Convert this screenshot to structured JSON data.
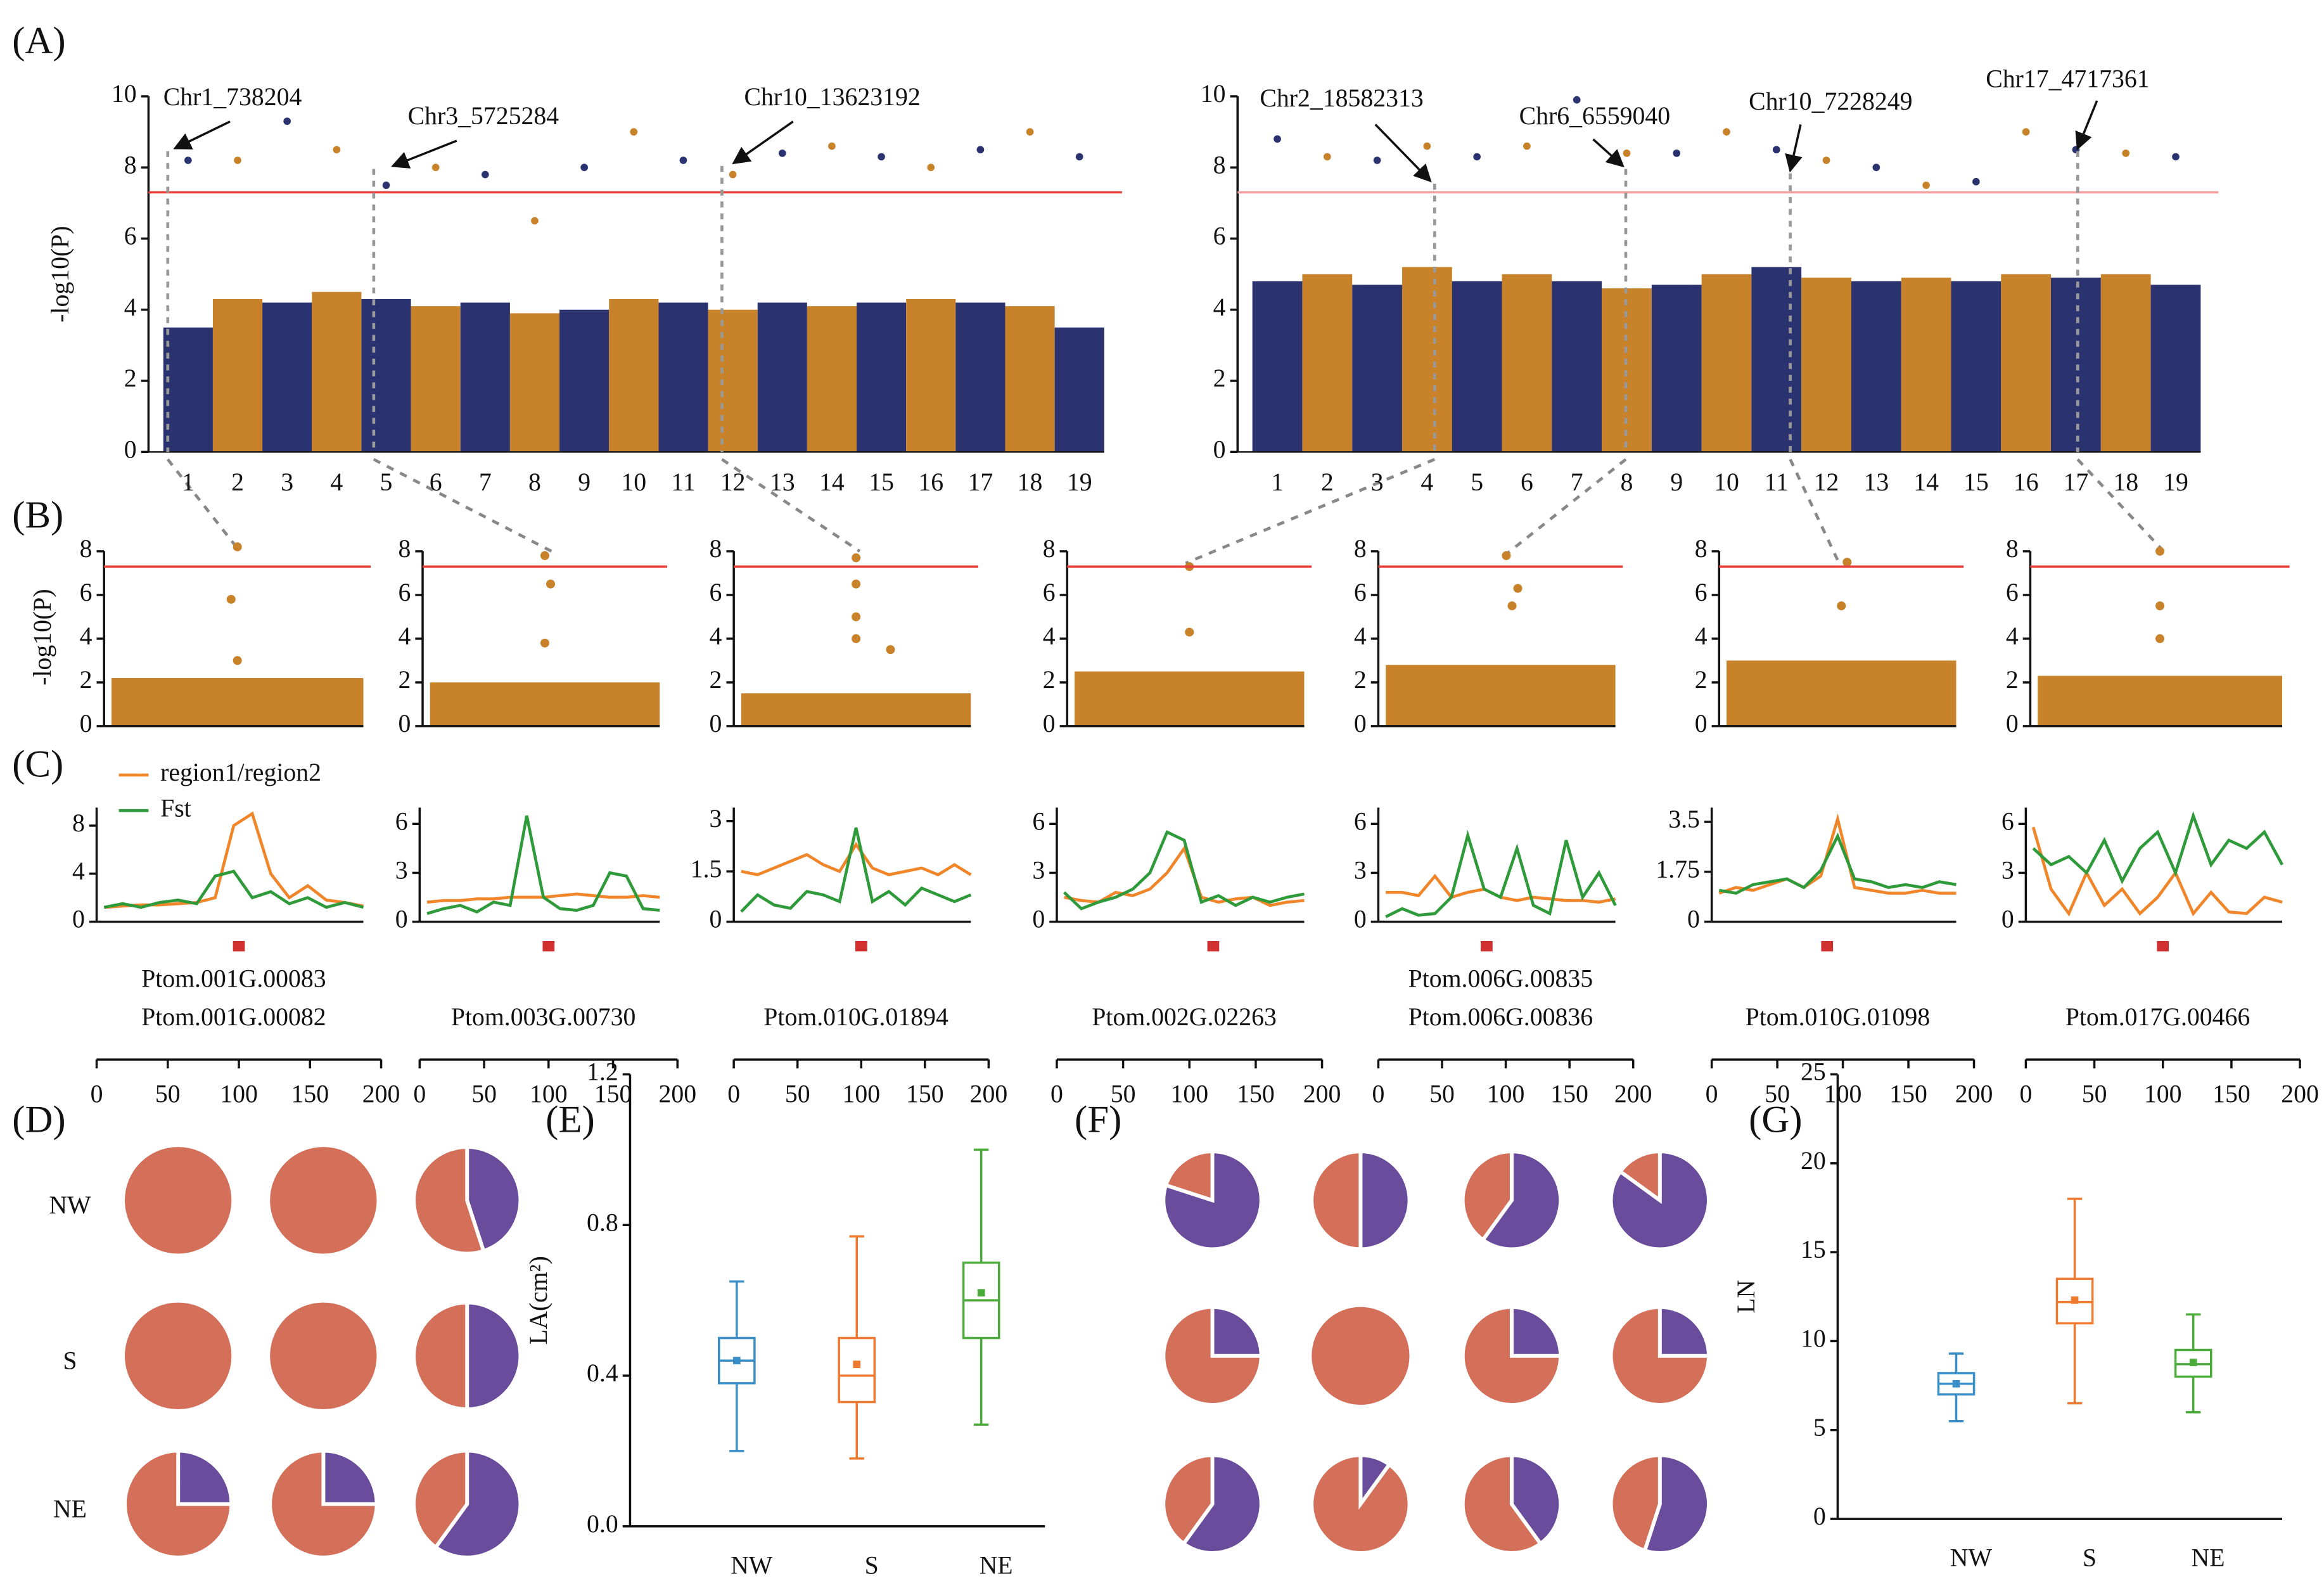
{
  "chart_data": [
    {
      "type": "manhattan",
      "panel": "(A)",
      "ylabel": "-log10(P)",
      "ylim": [
        0,
        10
      ],
      "yticks": [
        0,
        2,
        4,
        6,
        8,
        10
      ],
      "categories": [
        "1",
        "2",
        "3",
        "4",
        "5",
        "6",
        "7",
        "8",
        "9",
        "10",
        "11",
        "12",
        "13",
        "14",
        "15",
        "16",
        "17",
        "18",
        "19"
      ],
      "colors": [
        "#2b3270",
        "#c8822a"
      ],
      "threshold": 7.3,
      "threshold_color": "#e8403a",
      "band": [
        3.5,
        4.3,
        4.2,
        4.5,
        4.3,
        4.1,
        4.2,
        3.9,
        4.0,
        4.3,
        4.2,
        4.0,
        4.2,
        4.1,
        4.2,
        4.3,
        4.2,
        4.1,
        3.5
      ],
      "peaks": [
        8.2,
        8.2,
        9.3,
        8.5,
        7.5,
        8.0,
        7.8,
        6.5,
        8.0,
        9.0,
        8.2,
        7.8,
        8.4,
        8.6,
        8.3,
        8.0,
        8.5,
        9.0,
        8.3
      ],
      "annotations": [
        "Chr1_738204",
        "Chr3_5725284",
        "Chr10_13623192"
      ]
    },
    {
      "type": "manhattan",
      "ylim": [
        0,
        10
      ],
      "yticks": [
        0,
        2,
        4,
        6,
        8,
        10
      ],
      "categories": [
        "1",
        "2",
        "3",
        "4",
        "5",
        "6",
        "7",
        "8",
        "9",
        "10",
        "11",
        "12",
        "13",
        "14",
        "15",
        "16",
        "17",
        "18",
        "19"
      ],
      "colors": [
        "#2b3270",
        "#c8822a"
      ],
      "threshold": 7.3,
      "threshold_color": "#f4a0a0",
      "band": [
        4.8,
        5.0,
        4.7,
        5.2,
        4.8,
        5.0,
        4.8,
        4.6,
        4.7,
        5.0,
        5.2,
        4.9,
        4.8,
        4.9,
        4.8,
        5.0,
        4.9,
        5.0,
        4.7
      ],
      "peaks": [
        8.8,
        8.3,
        8.2,
        8.6,
        8.3,
        8.6,
        9.9,
        8.4,
        8.4,
        9.0,
        8.5,
        8.2,
        8.0,
        7.5,
        7.6,
        9.0,
        8.5,
        8.4,
        8.3
      ],
      "annotations": [
        "Chr2_18582313",
        "Chr6_6559040",
        "Chr10_7228249",
        "Chr17_4717361"
      ]
    },
    {
      "type": "regional",
      "panel": "(B)",
      "ylabel": "-log10(P)",
      "ylim": [
        0,
        8
      ],
      "yticks": [
        0,
        2,
        4,
        6,
        8
      ],
      "xlim": [
        0,
        200
      ],
      "threshold": 7.3,
      "color": "#c8822a",
      "band": 2.2,
      "x": [
        100,
        95,
        100
      ],
      "values": [
        8.2,
        5.8,
        3.0
      ]
    },
    {
      "type": "regional",
      "ylim": [
        0,
        8
      ],
      "yticks": [
        0,
        2,
        4,
        6,
        8
      ],
      "xlim": [
        0,
        200
      ],
      "threshold": 7.3,
      "color": "#c8822a",
      "band": 2.0,
      "x": [
        100,
        105,
        100
      ],
      "values": [
        7.8,
        6.5,
        3.8
      ]
    },
    {
      "type": "regional",
      "ylim": [
        0,
        8
      ],
      "yticks": [
        0,
        2,
        4,
        6,
        8
      ],
      "xlim": [
        0,
        200
      ],
      "threshold": 7.3,
      "color": "#c8822a",
      "band": 1.5,
      "x": [
        100,
        100,
        100,
        100,
        130
      ],
      "values": [
        7.7,
        6.5,
        5.0,
        4.0,
        3.5
      ]
    },
    {
      "type": "regional",
      "ylim": [
        0,
        8
      ],
      "yticks": [
        0,
        2,
        4,
        6,
        8
      ],
      "xlim": [
        0,
        200
      ],
      "threshold": 7.3,
      "color": "#c8822a",
      "band": 2.5,
      "x": [
        100,
        100
      ],
      "values": [
        7.3,
        4.3
      ]
    },
    {
      "type": "regional",
      "ylim": [
        0,
        8
      ],
      "yticks": [
        0,
        2,
        4,
        6,
        8
      ],
      "xlim": [
        0,
        200
      ],
      "threshold": 7.3,
      "color": "#c8822a",
      "band": 2.8,
      "x": [
        105,
        115,
        110
      ],
      "values": [
        7.8,
        6.3,
        5.5
      ]
    },
    {
      "type": "regional",
      "ylim": [
        0,
        8
      ],
      "yticks": [
        0,
        2,
        4,
        6,
        8
      ],
      "xlim": [
        0,
        200
      ],
      "threshold": 7.3,
      "color": "#c8822a",
      "band": 3.0,
      "x": [
        105,
        100
      ],
      "values": [
        7.5,
        5.5
      ]
    },
    {
      "type": "regional",
      "ylim": [
        0,
        8
      ],
      "yticks": [
        0,
        2,
        4,
        6,
        8
      ],
      "xlim": [
        0,
        200
      ],
      "threshold": 7.3,
      "color": "#c8822a",
      "band": 2.3,
      "x": [
        100,
        100,
        100
      ],
      "values": [
        8.0,
        5.5,
        4.0
      ]
    },
    {
      "type": "line",
      "panel": "(C)",
      "legend": "top-left",
      "ylim": [
        0,
        9.5
      ],
      "yticks": [
        0,
        4,
        8
      ],
      "xlim": [
        0,
        200
      ],
      "xticks": [
        0,
        50,
        100,
        150,
        200
      ],
      "gene_positions": [
        100
      ],
      "genes": [
        "Ptom.001G.00083",
        "Ptom.001G.00082"
      ],
      "series": [
        {
          "name": "region1/region2",
          "color": "#f0852a",
          "values": [
            1.2,
            1.3,
            1.4,
            1.4,
            1.5,
            1.6,
            2,
            8,
            9,
            4,
            2,
            3,
            1.8,
            1.6,
            1.3
          ]
        },
        {
          "name": "Fst",
          "color": "#2e9a3a",
          "values": [
            1.2,
            1.5,
            1.2,
            1.6,
            1.8,
            1.5,
            3.8,
            4.2,
            2,
            2.5,
            1.5,
            2,
            1.2,
            1.6,
            1.2
          ]
        }
      ]
    },
    {
      "type": "line",
      "ylim": [
        0,
        7
      ],
      "yticks": [
        0,
        3,
        6
      ],
      "xlim": [
        0,
        200
      ],
      "xticks": [
        0,
        50,
        100,
        150,
        200
      ],
      "gene_positions": [
        100
      ],
      "genes": [
        "Ptom.003G.00730"
      ],
      "series": [
        {
          "color": "#f0852a",
          "values": [
            1.2,
            1.3,
            1.3,
            1.4,
            1.4,
            1.5,
            1.5,
            1.5,
            1.6,
            1.7,
            1.6,
            1.5,
            1.5,
            1.6,
            1.5
          ]
        },
        {
          "color": "#2e9a3a",
          "values": [
            0.5,
            0.8,
            1,
            0.6,
            1.2,
            1,
            6.5,
            1.5,
            0.8,
            0.7,
            1,
            3,
            2.8,
            0.8,
            0.7
          ]
        }
      ]
    },
    {
      "type": "line",
      "ylim": [
        0,
        3.4
      ],
      "yticks": [
        0,
        1.5,
        3
      ],
      "xlim": [
        0,
        200
      ],
      "xticks": [
        0,
        50,
        100,
        150,
        200
      ],
      "gene_positions": [
        100
      ],
      "genes": [
        "Ptom.010G.01894"
      ],
      "series": [
        {
          "color": "#f0852a",
          "values": [
            1.5,
            1.4,
            1.6,
            1.8,
            2,
            1.7,
            1.5,
            2.3,
            1.6,
            1.4,
            1.5,
            1.6,
            1.4,
            1.7,
            1.4
          ]
        },
        {
          "color": "#2e9a3a",
          "values": [
            0.3,
            0.8,
            0.5,
            0.4,
            0.9,
            0.8,
            0.6,
            2.8,
            0.6,
            0.9,
            0.5,
            1,
            0.8,
            0.6,
            0.8
          ]
        }
      ]
    },
    {
      "type": "line",
      "ylim": [
        0,
        7
      ],
      "yticks": [
        0,
        3,
        6
      ],
      "xlim": [
        0,
        200
      ],
      "xticks": [
        0,
        50,
        100,
        150,
        200
      ],
      "gene_positions": [
        118
      ],
      "genes": [
        "Ptom.002G.02263"
      ],
      "series": [
        {
          "color": "#f0852a",
          "values": [
            1.5,
            1.3,
            1.2,
            1.8,
            1.6,
            2,
            3,
            4.5,
            1.5,
            1.2,
            1.4,
            1.5,
            1,
            1.2,
            1.3
          ]
        },
        {
          "color": "#2e9a3a",
          "values": [
            1.8,
            0.8,
            1.2,
            1.5,
            2,
            3,
            5.5,
            5,
            1.2,
            1.6,
            1,
            1.5,
            1.2,
            1.5,
            1.7
          ]
        }
      ]
    },
    {
      "type": "line",
      "ylim": [
        0,
        7
      ],
      "yticks": [
        0,
        3,
        6
      ],
      "xlim": [
        0,
        200
      ],
      "xticks": [
        0,
        50,
        100,
        150,
        200
      ],
      "gene_positions": [
        85
      ],
      "genes": [
        "Ptom.006G.00835",
        "Ptom.006G.00836"
      ],
      "series": [
        {
          "color": "#f0852a",
          "values": [
            1.8,
            1.8,
            1.6,
            2.8,
            1.5,
            1.8,
            2,
            1.5,
            1.3,
            1.5,
            1.4,
            1.3,
            1.3,
            1.2,
            1.4
          ]
        },
        {
          "color": "#2e9a3a",
          "values": [
            0.3,
            0.8,
            0.4,
            0.5,
            1.5,
            5.3,
            2,
            1.5,
            4.5,
            1,
            0.5,
            5,
            1.5,
            3,
            1
          ]
        }
      ]
    },
    {
      "type": "line",
      "ylim": [
        0,
        4
      ],
      "yticks": [
        0,
        1.75,
        3.5
      ],
      "xlim": [
        0,
        200
      ],
      "xticks": [
        0,
        50,
        100,
        150,
        200
      ],
      "gene_positions": [
        88
      ],
      "genes": [
        "Ptom.010G.01098"
      ],
      "series": [
        {
          "color": "#f0852a",
          "values": [
            1,
            1.2,
            1.1,
            1.3,
            1.5,
            1.2,
            1.6,
            3.6,
            1.2,
            1.1,
            1,
            1,
            1.1,
            1,
            1
          ]
        },
        {
          "color": "#2e9a3a",
          "values": [
            1.1,
            1,
            1.3,
            1.4,
            1.5,
            1.2,
            1.8,
            3,
            1.5,
            1.4,
            1.2,
            1.3,
            1.2,
            1.4,
            1.3
          ]
        }
      ]
    },
    {
      "type": "line",
      "ylim": [
        0,
        7
      ],
      "yticks": [
        0,
        3,
        6
      ],
      "xlim": [
        0,
        200
      ],
      "xticks": [
        0,
        50,
        100,
        150,
        200
      ],
      "gene_positions": [
        100
      ],
      "genes": [
        "Ptom.017G.00466"
      ],
      "series": [
        {
          "color": "#f0852a",
          "values": [
            5.8,
            2,
            0.5,
            3,
            1,
            2,
            0.5,
            1.5,
            3,
            0.5,
            1.8,
            0.6,
            0.5,
            1.5,
            1.2
          ]
        },
        {
          "color": "#2e9a3a",
          "values": [
            4.5,
            3.5,
            4,
            3,
            5,
            2.5,
            4.5,
            5.5,
            3,
            6.5,
            3.5,
            5,
            4.5,
            5.5,
            3.5
          ]
        }
      ]
    },
    {
      "type": "pie",
      "panel": "(D)",
      "rows": [
        "NW",
        "S",
        "NE"
      ],
      "colors": [
        "#6a4c9c",
        "#d4705a"
      ],
      "values": [
        [
          [
            0,
            100
          ],
          [
            0,
            100
          ],
          [
            45,
            55
          ]
        ],
        [
          [
            0,
            100
          ],
          [
            0,
            100
          ],
          [
            50,
            50
          ]
        ],
        [
          [
            25,
            75
          ],
          [
            25,
            75
          ],
          [
            60,
            40
          ]
        ]
      ]
    },
    {
      "type": "box",
      "panel": "(E)",
      "ylabel": "LA(cm²)",
      "ylim": [
        0,
        1.2
      ],
      "yticks": [
        {
          "value": 0,
          "label": "0.0"
        },
        0.4,
        0.8,
        1.2
      ],
      "categories": [
        "NW",
        "S",
        "NE"
      ],
      "colors": [
        "#3a8ec8",
        "#ee7a30",
        "#4aaa3a"
      ],
      "min": [
        0.2,
        0.18,
        0.27
      ],
      "q1": [
        0.38,
        0.33,
        0.5
      ],
      "median": [
        0.44,
        0.4,
        0.6
      ],
      "q3": [
        0.5,
        0.5,
        0.7
      ],
      "max": [
        0.65,
        0.77,
        1.0
      ],
      "mean": [
        0.44,
        0.43,
        0.62
      ]
    },
    {
      "type": "pie",
      "panel": "(F)",
      "colors": [
        "#6a4c9c",
        "#d4705a"
      ],
      "values": [
        [
          [
            80,
            20
          ],
          [
            50,
            50
          ],
          [
            60,
            40
          ],
          [
            85,
            15
          ]
        ],
        [
          [
            25,
            75
          ],
          [
            0,
            100
          ],
          [
            25,
            75
          ],
          [
            25,
            75
          ]
        ],
        [
          [
            60,
            40
          ],
          [
            10,
            90
          ],
          [
            40,
            60
          ],
          [
            55,
            45
          ]
        ]
      ]
    },
    {
      "type": "box",
      "panel": "(G)",
      "ylabel": "LN",
      "ylim": [
        0,
        25
      ],
      "yticks": [
        0,
        5,
        10,
        15,
        20,
        25
      ],
      "categories": [
        "NW",
        "S",
        "NE"
      ],
      "colors": [
        "#3a8ec8",
        "#ee7a30",
        "#4aaa3a"
      ],
      "min": [
        5.5,
        6.5,
        6
      ],
      "q1": [
        7,
        11,
        8
      ],
      "median": [
        7.6,
        12.2,
        8.7
      ],
      "q3": [
        8.2,
        13.5,
        9.5
      ],
      "max": [
        9.3,
        18,
        11.5
      ],
      "mean": [
        7.6,
        12.3,
        8.8
      ]
    }
  ]
}
